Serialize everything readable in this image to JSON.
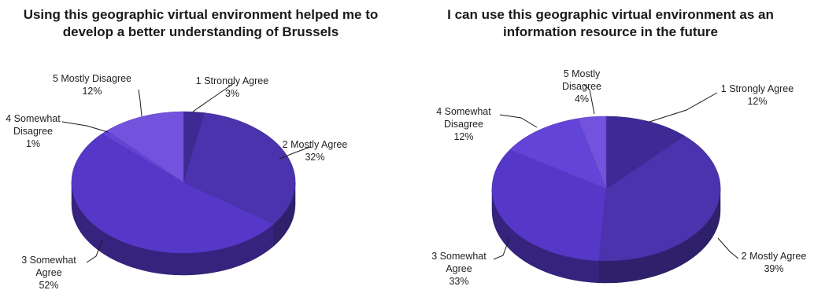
{
  "chart_data": [
    {
      "type": "pie",
      "title_lines": [
        "Using this geographic virtual environment helped me to",
        "develop a better understanding of Brussels"
      ],
      "slices": [
        {
          "label_lines": [
            "1 Strongly Agree"
          ],
          "value": 3,
          "pct": "3%",
          "color": "#3e2a94"
        },
        {
          "label_lines": [
            "2 Mostly Agree"
          ],
          "value": 32,
          "pct": "32%",
          "color": "#4a33ad"
        },
        {
          "label_lines": [
            "3 Somewhat",
            "Agree"
          ],
          "value": 52,
          "pct": "52%",
          "color": "#5638c9"
        },
        {
          "label_lines": [
            "4 Somewhat",
            "Disagree"
          ],
          "value": 1,
          "pct": "1%",
          "color": "#6344d8"
        },
        {
          "label_lines": [
            "5 Mostly Disagree"
          ],
          "value": 12,
          "pct": "12%",
          "color": "#7352dd"
        }
      ]
    },
    {
      "type": "pie",
      "title_lines": [
        "I can use this geographic virtual environment as an",
        "information resource in the future"
      ],
      "slices": [
        {
          "label_lines": [
            "1 Strongly Agree"
          ],
          "value": 12,
          "pct": "12%",
          "color": "#3e2a94"
        },
        {
          "label_lines": [
            "2 Mostly Agree"
          ],
          "value": 39,
          "pct": "39%",
          "color": "#4a33ad"
        },
        {
          "label_lines": [
            "3 Somewhat",
            "Agree"
          ],
          "value": 33,
          "pct": "33%",
          "color": "#5638c9"
        },
        {
          "label_lines": [
            "4 Somewhat",
            "Disagree"
          ],
          "value": 12,
          "pct": "12%",
          "color": "#6344d8"
        },
        {
          "label_lines": [
            "5 Mostly",
            "Disagree"
          ],
          "value": 4,
          "pct": "4%",
          "color": "#7352dd"
        }
      ]
    }
  ]
}
